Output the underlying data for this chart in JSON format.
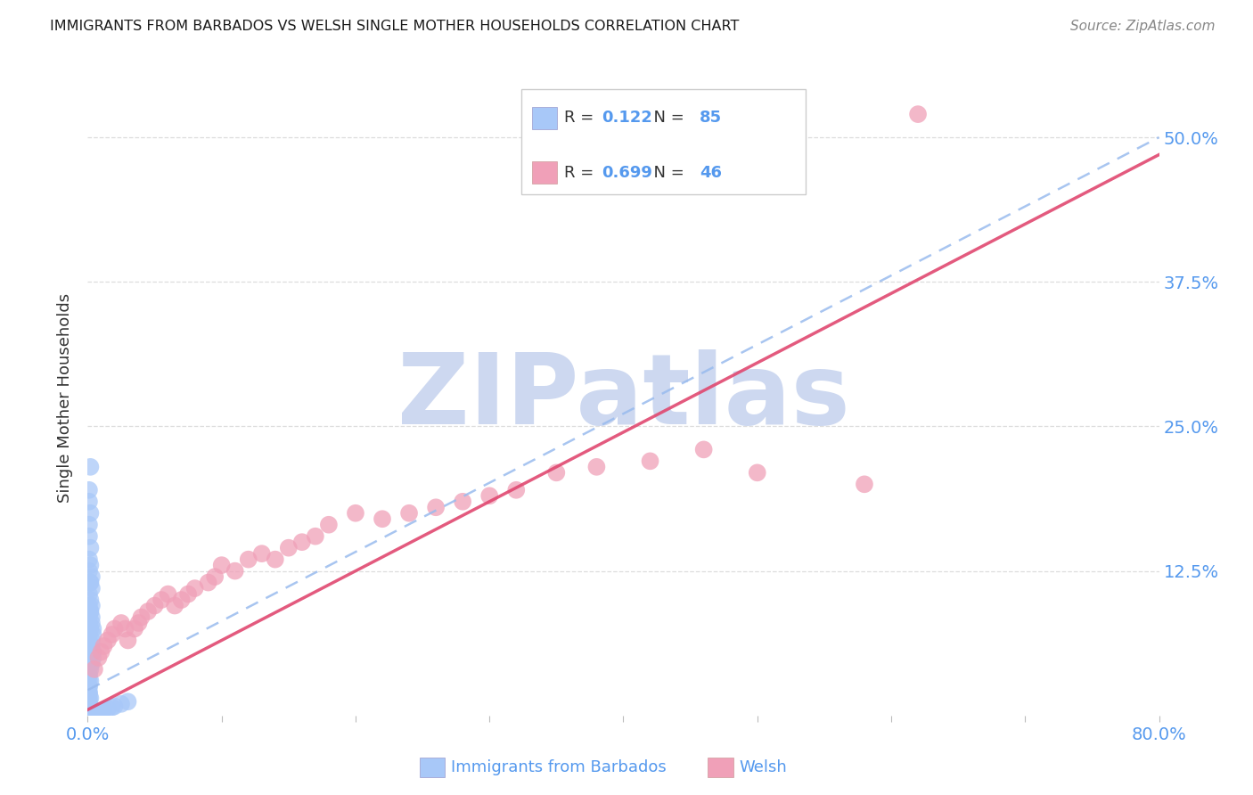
{
  "title": "IMMIGRANTS FROM BARBADOS VS WELSH SINGLE MOTHER HOUSEHOLDS CORRELATION CHART",
  "source": "Source: ZipAtlas.com",
  "xlim": [
    0.0,
    0.8
  ],
  "ylim": [
    0.0,
    0.55
  ],
  "yticks": [
    0.0,
    0.125,
    0.25,
    0.375,
    0.5
  ],
  "ytick_labels": [
    "",
    "12.5%",
    "25.0%",
    "37.5%",
    "50.0%"
  ],
  "xtick_vals": [
    0.0,
    0.1,
    0.2,
    0.3,
    0.4,
    0.5,
    0.6,
    0.7,
    0.8
  ],
  "series1_label": "Immigrants from Barbados",
  "series1_R": 0.122,
  "series1_N": 85,
  "series1_color": "#a8c8f8",
  "series1_line_color": "#99bbee",
  "series2_label": "Welsh",
  "series2_R": 0.699,
  "series2_N": 46,
  "series2_color": "#f0a0b8",
  "series2_line_color": "#e04870",
  "watermark_text": "ZIPatlas",
  "watermark_color": "#cdd8f0",
  "background_color": "#ffffff",
  "grid_color": "#dddddd",
  "title_color": "#1a1a1a",
  "axis_label_color": "#333333",
  "tick_color": "#5599ee",
  "ylabel": "Single Mother Households",
  "series1_line_x0": 0.0,
  "series1_line_y0": 0.022,
  "series1_line_x1": 0.8,
  "series1_line_y1": 0.5,
  "series2_line_x0": 0.0,
  "series2_line_y0": 0.005,
  "series2_line_x1": 0.8,
  "series2_line_y1": 0.485,
  "series1_x": [
    0.002,
    0.001,
    0.001,
    0.002,
    0.001,
    0.001,
    0.002,
    0.001,
    0.001,
    0.002,
    0.001,
    0.001,
    0.002,
    0.001,
    0.001,
    0.002,
    0.001,
    0.001,
    0.002,
    0.001,
    0.001,
    0.002,
    0.001,
    0.001,
    0.002,
    0.001,
    0.001,
    0.001,
    0.001,
    0.001,
    0.001,
    0.001,
    0.001,
    0.001,
    0.001,
    0.002,
    0.003,
    0.002,
    0.003,
    0.002,
    0.003,
    0.002,
    0.003,
    0.003,
    0.004,
    0.004,
    0.003,
    0.003,
    0.004,
    0.004,
    0.003,
    0.002,
    0.001,
    0.001,
    0.001,
    0.001,
    0.002,
    0.001,
    0.001,
    0.001,
    0.001,
    0.001,
    0.001,
    0.001,
    0.001,
    0.001,
    0.001,
    0.001,
    0.001,
    0.001,
    0.001,
    0.002,
    0.002,
    0.003,
    0.004,
    0.005,
    0.006,
    0.008,
    0.01,
    0.012,
    0.015,
    0.018,
    0.02,
    0.025,
    0.03
  ],
  "series1_y": [
    0.215,
    0.195,
    0.185,
    0.175,
    0.165,
    0.155,
    0.145,
    0.135,
    0.125,
    0.115,
    0.105,
    0.095,
    0.09,
    0.085,
    0.08,
    0.075,
    0.07,
    0.065,
    0.06,
    0.055,
    0.05,
    0.045,
    0.04,
    0.035,
    0.03,
    0.025,
    0.02,
    0.018,
    0.015,
    0.013,
    0.01,
    0.008,
    0.006,
    0.005,
    0.003,
    0.13,
    0.12,
    0.115,
    0.11,
    0.1,
    0.095,
    0.09,
    0.085,
    0.08,
    0.075,
    0.07,
    0.065,
    0.06,
    0.055,
    0.05,
    0.045,
    0.04,
    0.035,
    0.03,
    0.025,
    0.02,
    0.015,
    0.01,
    0.008,
    0.006,
    0.005,
    0.003,
    0.002,
    0.002,
    0.002,
    0.002,
    0.002,
    0.002,
    0.002,
    0.002,
    0.002,
    0.002,
    0.002,
    0.002,
    0.002,
    0.002,
    0.002,
    0.003,
    0.004,
    0.005,
    0.006,
    0.007,
    0.008,
    0.01,
    0.012
  ],
  "series2_x": [
    0.005,
    0.008,
    0.01,
    0.012,
    0.015,
    0.018,
    0.02,
    0.025,
    0.028,
    0.03,
    0.035,
    0.038,
    0.04,
    0.045,
    0.05,
    0.055,
    0.06,
    0.065,
    0.07,
    0.075,
    0.08,
    0.09,
    0.095,
    0.1,
    0.11,
    0.12,
    0.13,
    0.14,
    0.15,
    0.16,
    0.17,
    0.18,
    0.2,
    0.22,
    0.24,
    0.26,
    0.28,
    0.3,
    0.32,
    0.35,
    0.38,
    0.42,
    0.46,
    0.5,
    0.58,
    0.62
  ],
  "series2_y": [
    0.04,
    0.05,
    0.055,
    0.06,
    0.065,
    0.07,
    0.075,
    0.08,
    0.075,
    0.065,
    0.075,
    0.08,
    0.085,
    0.09,
    0.095,
    0.1,
    0.105,
    0.095,
    0.1,
    0.105,
    0.11,
    0.115,
    0.12,
    0.13,
    0.125,
    0.135,
    0.14,
    0.135,
    0.145,
    0.15,
    0.155,
    0.165,
    0.175,
    0.17,
    0.175,
    0.18,
    0.185,
    0.19,
    0.195,
    0.21,
    0.215,
    0.22,
    0.23,
    0.21,
    0.2,
    0.52
  ]
}
